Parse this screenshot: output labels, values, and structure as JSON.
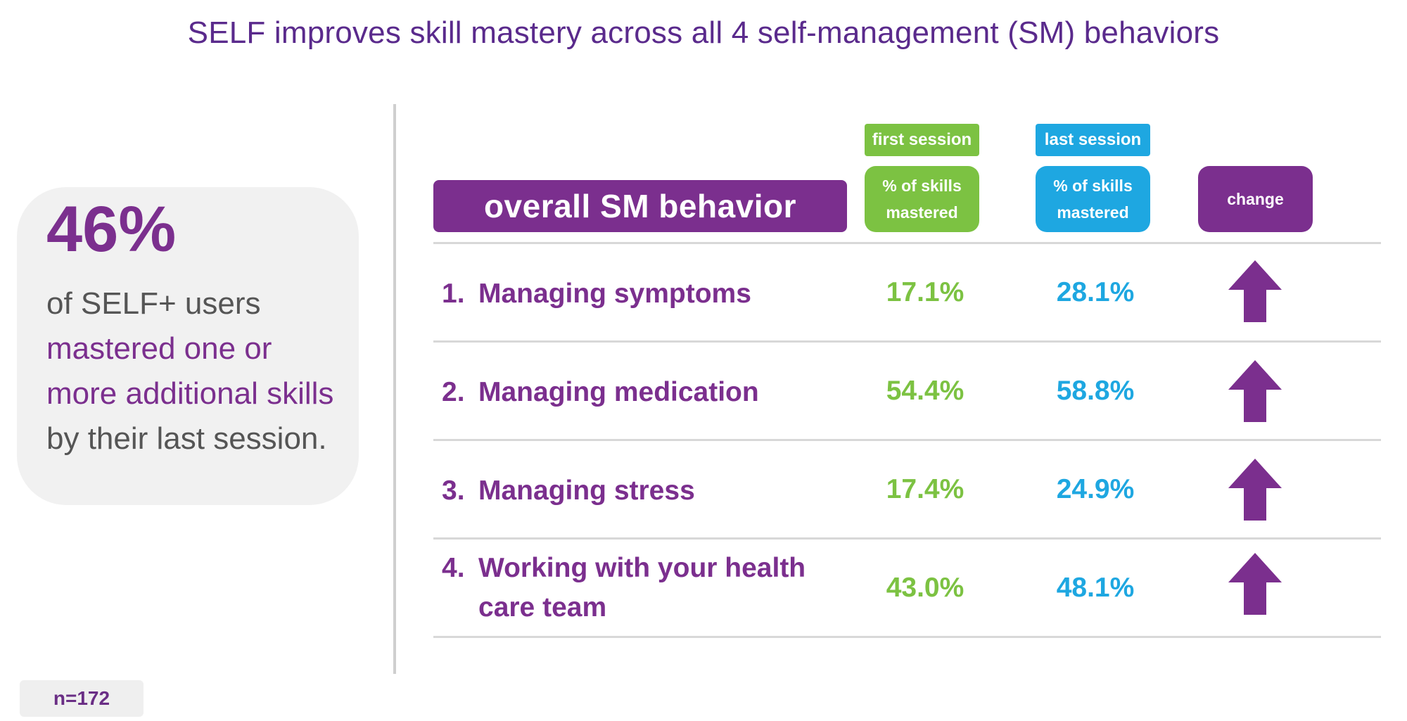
{
  "title": "SELF improves skill mastery across all 4 self-management (SM) behaviors",
  "callout": {
    "big_number": "46%",
    "line1": "of SELF+ users",
    "highlight": "mastered one or more additional skills",
    "rest": "by their last session."
  },
  "sample_size": "n=172",
  "table": {
    "header_behavior": "overall SM behavior",
    "header_first_tag": "first session",
    "header_last_tag": "last session",
    "header_pct_line1": "% of skills",
    "header_pct_line2": "mastered",
    "header_change": "change",
    "rows": [
      {
        "num": "1.",
        "behavior": "Managing symptoms",
        "first": "17.1%",
        "last": "28.1%",
        "change_icon": "up-arrow-icon"
      },
      {
        "num": "2.",
        "behavior": "Managing medication",
        "first": "54.4%",
        "last": "58.8%",
        "change_icon": "up-arrow-icon"
      },
      {
        "num": "3.",
        "behavior": "Managing stress",
        "first": "17.4%",
        "last": "24.9%",
        "change_icon": "up-arrow-icon"
      },
      {
        "num": "4.",
        "behavior": "Working with your health care team",
        "first": "43.0%",
        "last": "48.1%",
        "change_icon": "up-arrow-icon"
      }
    ]
  },
  "colors": {
    "purple": "#7b2f8e",
    "title_purple": "#5a2a8c",
    "green": "#7cc242",
    "blue": "#1ea7e1",
    "gray_text": "#555555"
  }
}
